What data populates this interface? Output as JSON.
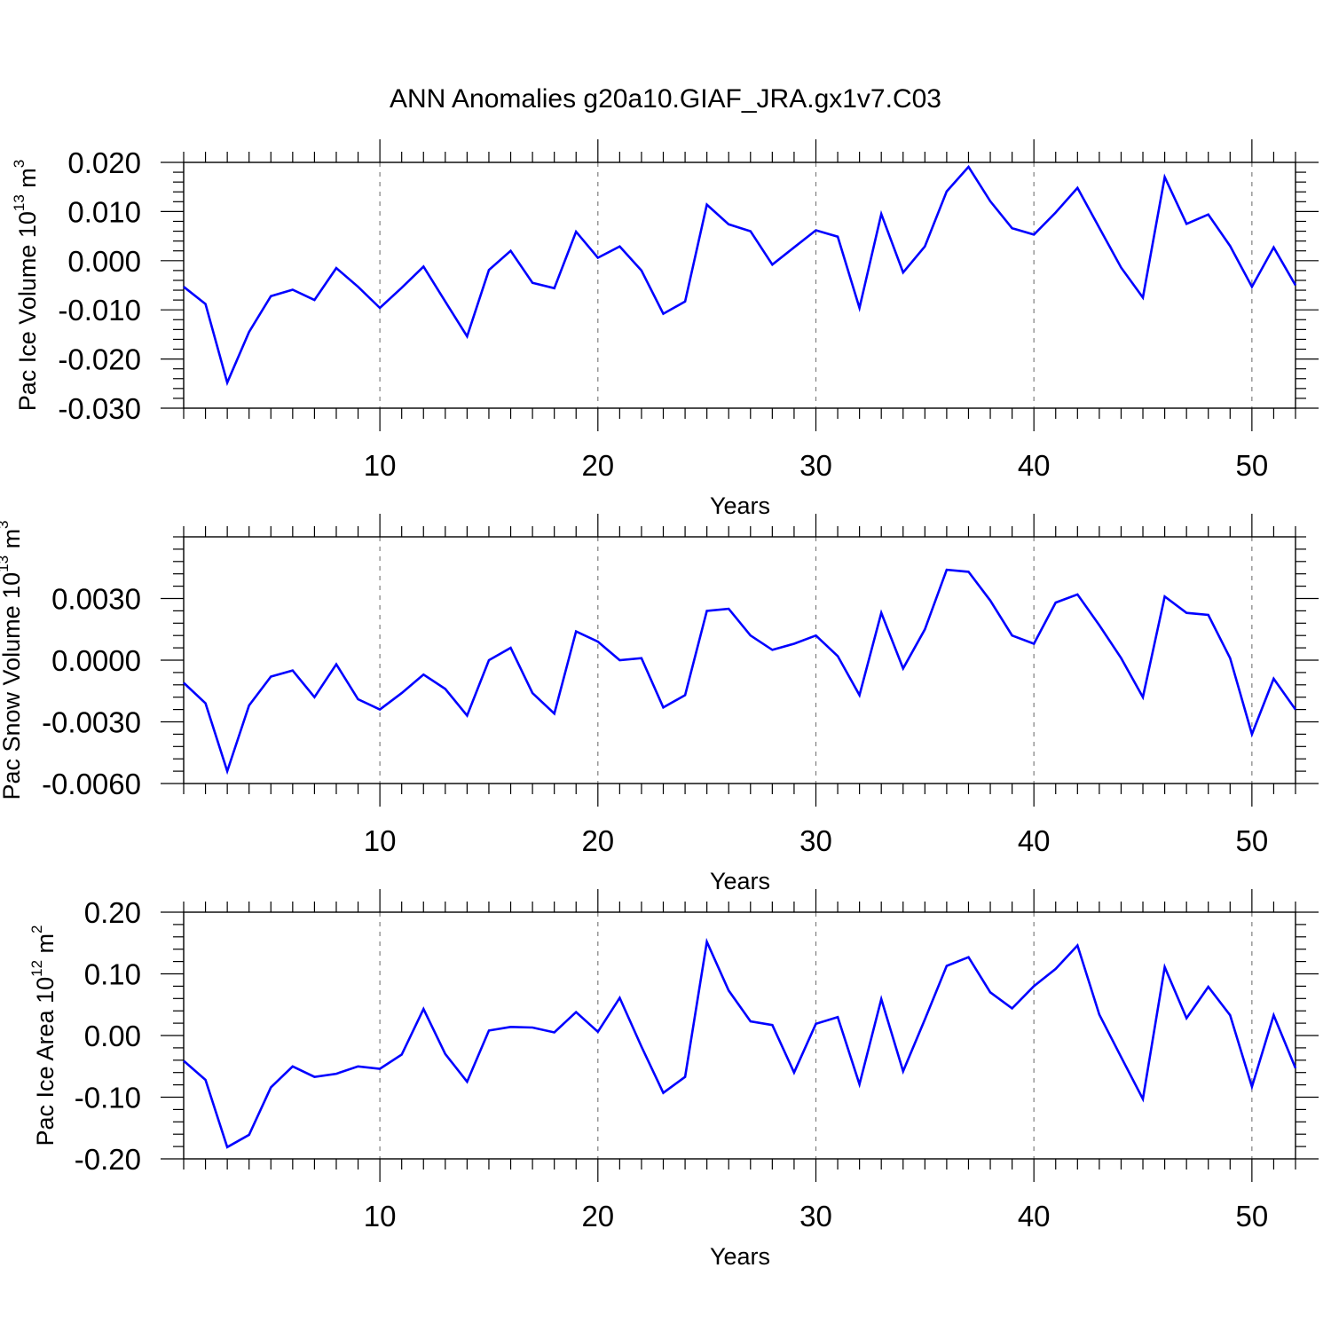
{
  "figure": {
    "title": "ANN Anomalies g20a10.GIAF_JRA.gx1v7.C03"
  },
  "colors": {
    "line": "#0000ff",
    "axis": "#000000",
    "grid": "#7f7f7f"
  },
  "chart_data": [
    {
      "type": "line",
      "xlabel": "Years",
      "ylabel_main": "Pac Ice Volume 10",
      "ylabel_sup": "13",
      "ylabel_unit": " m",
      "ylabel_unit_sup": "3",
      "xlim": [
        1,
        52
      ],
      "ylim": [
        -0.03,
        0.02
      ],
      "xticks": [
        10,
        20,
        30,
        40,
        50
      ],
      "xtick_labels": [
        "10",
        "20",
        "30",
        "40",
        "50"
      ],
      "yticks": [
        0.02,
        0.01,
        0.0,
        -0.01,
        -0.02,
        -0.03
      ],
      "ytick_labels": [
        "0.020",
        "0.010",
        "0.000",
        "-0.010",
        "-0.020",
        "-0.030"
      ],
      "grid": "dashed vertical at major x ticks",
      "x": [
        1,
        2,
        3,
        4,
        5,
        6,
        7,
        8,
        9,
        10,
        11,
        12,
        13,
        14,
        15,
        16,
        17,
        18,
        19,
        20,
        21,
        22,
        23,
        24,
        25,
        26,
        27,
        28,
        29,
        30,
        31,
        32,
        33,
        34,
        35,
        36,
        37,
        38,
        39,
        40,
        41,
        42,
        43,
        44,
        45,
        46,
        47,
        48,
        49,
        50,
        51,
        52
      ],
      "values": [
        -0.0053,
        -0.0088,
        -0.0248,
        -0.0145,
        -0.0072,
        -0.0059,
        -0.008,
        -0.0015,
        -0.0053,
        -0.0096,
        -0.0055,
        -0.0012,
        -0.0083,
        -0.0154,
        -0.0019,
        0.002,
        -0.0045,
        -0.0056,
        0.0059,
        0.0006,
        0.0029,
        -0.002,
        -0.0108,
        -0.0083,
        0.0114,
        0.0074,
        0.006,
        -0.0008,
        0.0027,
        0.0062,
        0.0049,
        -0.0096,
        0.0095,
        -0.0024,
        0.0029,
        0.0141,
        0.0191,
        0.0121,
        0.0066,
        0.0053,
        0.0098,
        0.0148,
        0.0067,
        -0.0014,
        -0.0075,
        0.017,
        0.0075,
        0.0094,
        0.003,
        -0.0053,
        0.0027,
        -0.005
      ]
    },
    {
      "type": "line",
      "xlabel": "Years",
      "ylabel_main": "Pac Snow Volume 10",
      "ylabel_sup": "13",
      "ylabel_unit": " m",
      "ylabel_unit_sup": "3",
      "xlim": [
        1,
        52
      ],
      "ylim": [
        -0.006,
        0.006
      ],
      "xticks": [
        10,
        20,
        30,
        40,
        50
      ],
      "xtick_labels": [
        "10",
        "20",
        "30",
        "40",
        "50"
      ],
      "yticks": [
        0.003,
        0.0,
        -0.003,
        -0.006
      ],
      "ytick_labels": [
        "0.0030",
        "0.0000",
        "-0.0030",
        "-0.0060"
      ],
      "grid": "dashed vertical at major x ticks",
      "x": [
        1,
        2,
        3,
        4,
        5,
        6,
        7,
        8,
        9,
        10,
        11,
        12,
        13,
        14,
        15,
        16,
        17,
        18,
        19,
        20,
        21,
        22,
        23,
        24,
        25,
        26,
        27,
        28,
        29,
        30,
        31,
        32,
        33,
        34,
        35,
        36,
        37,
        38,
        39,
        40,
        41,
        42,
        43,
        44,
        45,
        46,
        47,
        48,
        49,
        50,
        51,
        52
      ],
      "values": [
        -0.0011,
        -0.0021,
        -0.0054,
        -0.0022,
        -0.0008,
        -0.0005,
        -0.0018,
        -0.0002,
        -0.0019,
        -0.0024,
        -0.0016,
        -0.0007,
        -0.0014,
        -0.0027,
        0.0,
        0.0006,
        -0.0016,
        -0.0026,
        0.0014,
        0.0009,
        0.0,
        0.0001,
        -0.0023,
        -0.0017,
        0.0024,
        0.0025,
        0.0012,
        0.0005,
        0.0008,
        0.0012,
        0.0002,
        -0.0017,
        0.0023,
        -0.0004,
        0.0015,
        0.0044,
        0.0043,
        0.0029,
        0.0012,
        0.0008,
        0.0028,
        0.0032,
        0.0017,
        0.0001,
        -0.0018,
        0.0031,
        0.0023,
        0.0022,
        0.0001,
        -0.0036,
        -0.0009,
        -0.0024
      ]
    },
    {
      "type": "line",
      "xlabel": "Years",
      "ylabel_main": "Pac Ice Area 10",
      "ylabel_sup": "12",
      "ylabel_unit": " m",
      "ylabel_unit_sup": "2",
      "xlim": [
        1,
        52
      ],
      "ylim": [
        -0.2,
        0.2
      ],
      "xticks": [
        10,
        20,
        30,
        40,
        50
      ],
      "xtick_labels": [
        "10",
        "20",
        "30",
        "40",
        "50"
      ],
      "yticks": [
        0.2,
        0.1,
        0.0,
        -0.1,
        -0.2
      ],
      "ytick_labels": [
        "0.20",
        "0.10",
        "0.00",
        "-0.10",
        "-0.20"
      ],
      "grid": "dashed vertical at major x ticks",
      "x": [
        1,
        2,
        3,
        4,
        5,
        6,
        7,
        8,
        9,
        10,
        11,
        12,
        13,
        14,
        15,
        16,
        17,
        18,
        19,
        20,
        21,
        22,
        23,
        24,
        25,
        26,
        27,
        28,
        29,
        30,
        31,
        32,
        33,
        34,
        35,
        36,
        37,
        38,
        39,
        40,
        41,
        42,
        43,
        44,
        45,
        46,
        47,
        48,
        49,
        50,
        51,
        52
      ],
      "values": [
        -0.041,
        -0.072,
        -0.181,
        -0.161,
        -0.084,
        -0.05,
        -0.067,
        -0.062,
        -0.05,
        -0.054,
        -0.031,
        0.043,
        -0.03,
        -0.075,
        0.008,
        0.014,
        0.013,
        0.005,
        0.038,
        0.006,
        0.061,
        -0.018,
        -0.093,
        -0.067,
        0.152,
        0.073,
        0.023,
        0.017,
        -0.06,
        0.019,
        0.03,
        -0.079,
        0.059,
        -0.058,
        0.026,
        0.113,
        0.127,
        0.07,
        0.044,
        0.08,
        0.108,
        0.146,
        0.034,
        -0.035,
        -0.103,
        0.111,
        0.028,
        0.079,
        0.033,
        -0.083,
        0.033,
        -0.053
      ]
    }
  ]
}
